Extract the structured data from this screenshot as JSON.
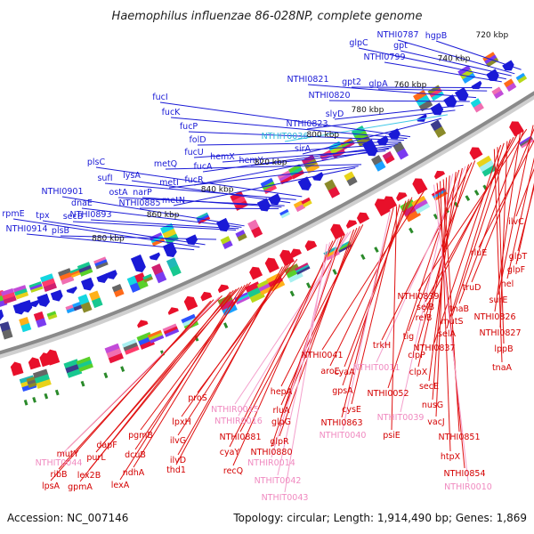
{
  "title": "Haemophilus influenzae 86-028NP, complete genome",
  "footer": {
    "accession": "Accession: NC_007146",
    "summary": "Topology: circular; Length: 1,914,490 bp; Genes: 1,869"
  },
  "colors": {
    "blue_label": "#1a1ad6",
    "blue_line": "#1a1ad6",
    "red_label": "#d40000",
    "red_line": "#e01010",
    "pink_label": "#f08ac0",
    "pink_line": "#f4a0cc",
    "cyan_label": "#2ab8d8",
    "cyan_line": "#40c8e8",
    "backbone": "#888888",
    "tick": "#2a8a2a"
  },
  "kbp_ticks": [
    "720 kbp",
    "740 kbp",
    "760 kbp",
    "780 kbp",
    "800 kbp",
    "820 kbp",
    "840 kbp",
    "860 kbp",
    "880 kbp"
  ],
  "top_labels": [
    "hgpB",
    "NTHI0787",
    "gpt",
    "glpC",
    "NTHI0799",
    "gpt2",
    "glpA",
    "NTHI0821",
    "NTHI0820",
    "slyD",
    "NTHI0823",
    "NTHIT0036",
    "sirA",
    "fucI",
    "fucK",
    "fucP",
    "folD",
    "fucU",
    "fucA",
    "fucR",
    "hemX",
    "hemY",
    "metQ",
    "metI",
    "metN",
    "plsC",
    "sufI",
    "lysA",
    "ostA",
    "narP",
    "NTHI0885",
    "NTHI0901",
    "dnaE",
    "NTHI0893",
    "secB",
    "rpmE",
    "tpx",
    "NTHI0914",
    "plsB"
  ],
  "right_labels": [
    "ilvC",
    "rluE",
    "glpT",
    "glpF",
    "hel",
    "truD",
    "surE",
    "NTHI0839",
    "tnaB",
    "NTHI0826",
    "selB",
    "relB",
    "mutS",
    "NTHI0827",
    "selA",
    "NTHI0837",
    "lppB",
    "tnaA"
  ],
  "bottom_labels": [
    "tig",
    "trkH",
    "clpP",
    "NTHI0041",
    "NTHIT0011",
    "clpX",
    "NTHI0052",
    "secE",
    "NTHIT0039",
    "nusG",
    "vacJ",
    "NTHI0851",
    "htpX",
    "NTHI0854",
    "NTHIR0010",
    "aroE",
    "cyaA",
    "gpsA",
    "cysE",
    "psiE",
    "NTHI0863",
    "NTHIT0040",
    "hepA",
    "rluA",
    "glpG",
    "glpR",
    "NTHIR0015",
    "NTHIR0016",
    "NTHI0881",
    "NTHI0880",
    "NTHIR0014",
    "cyaY",
    "recQ",
    "NTHIT0042",
    "NTHIT0043",
    "proS",
    "lpxH",
    "ilvG",
    "ilvD",
    "thd1",
    "pgmB",
    "dcuB",
    "ndhA",
    "lexA",
    "dapF",
    "lex2B",
    "purL",
    "gpmA",
    "mutY",
    "NTHIT0044",
    "ribB",
    "lpsA"
  ]
}
